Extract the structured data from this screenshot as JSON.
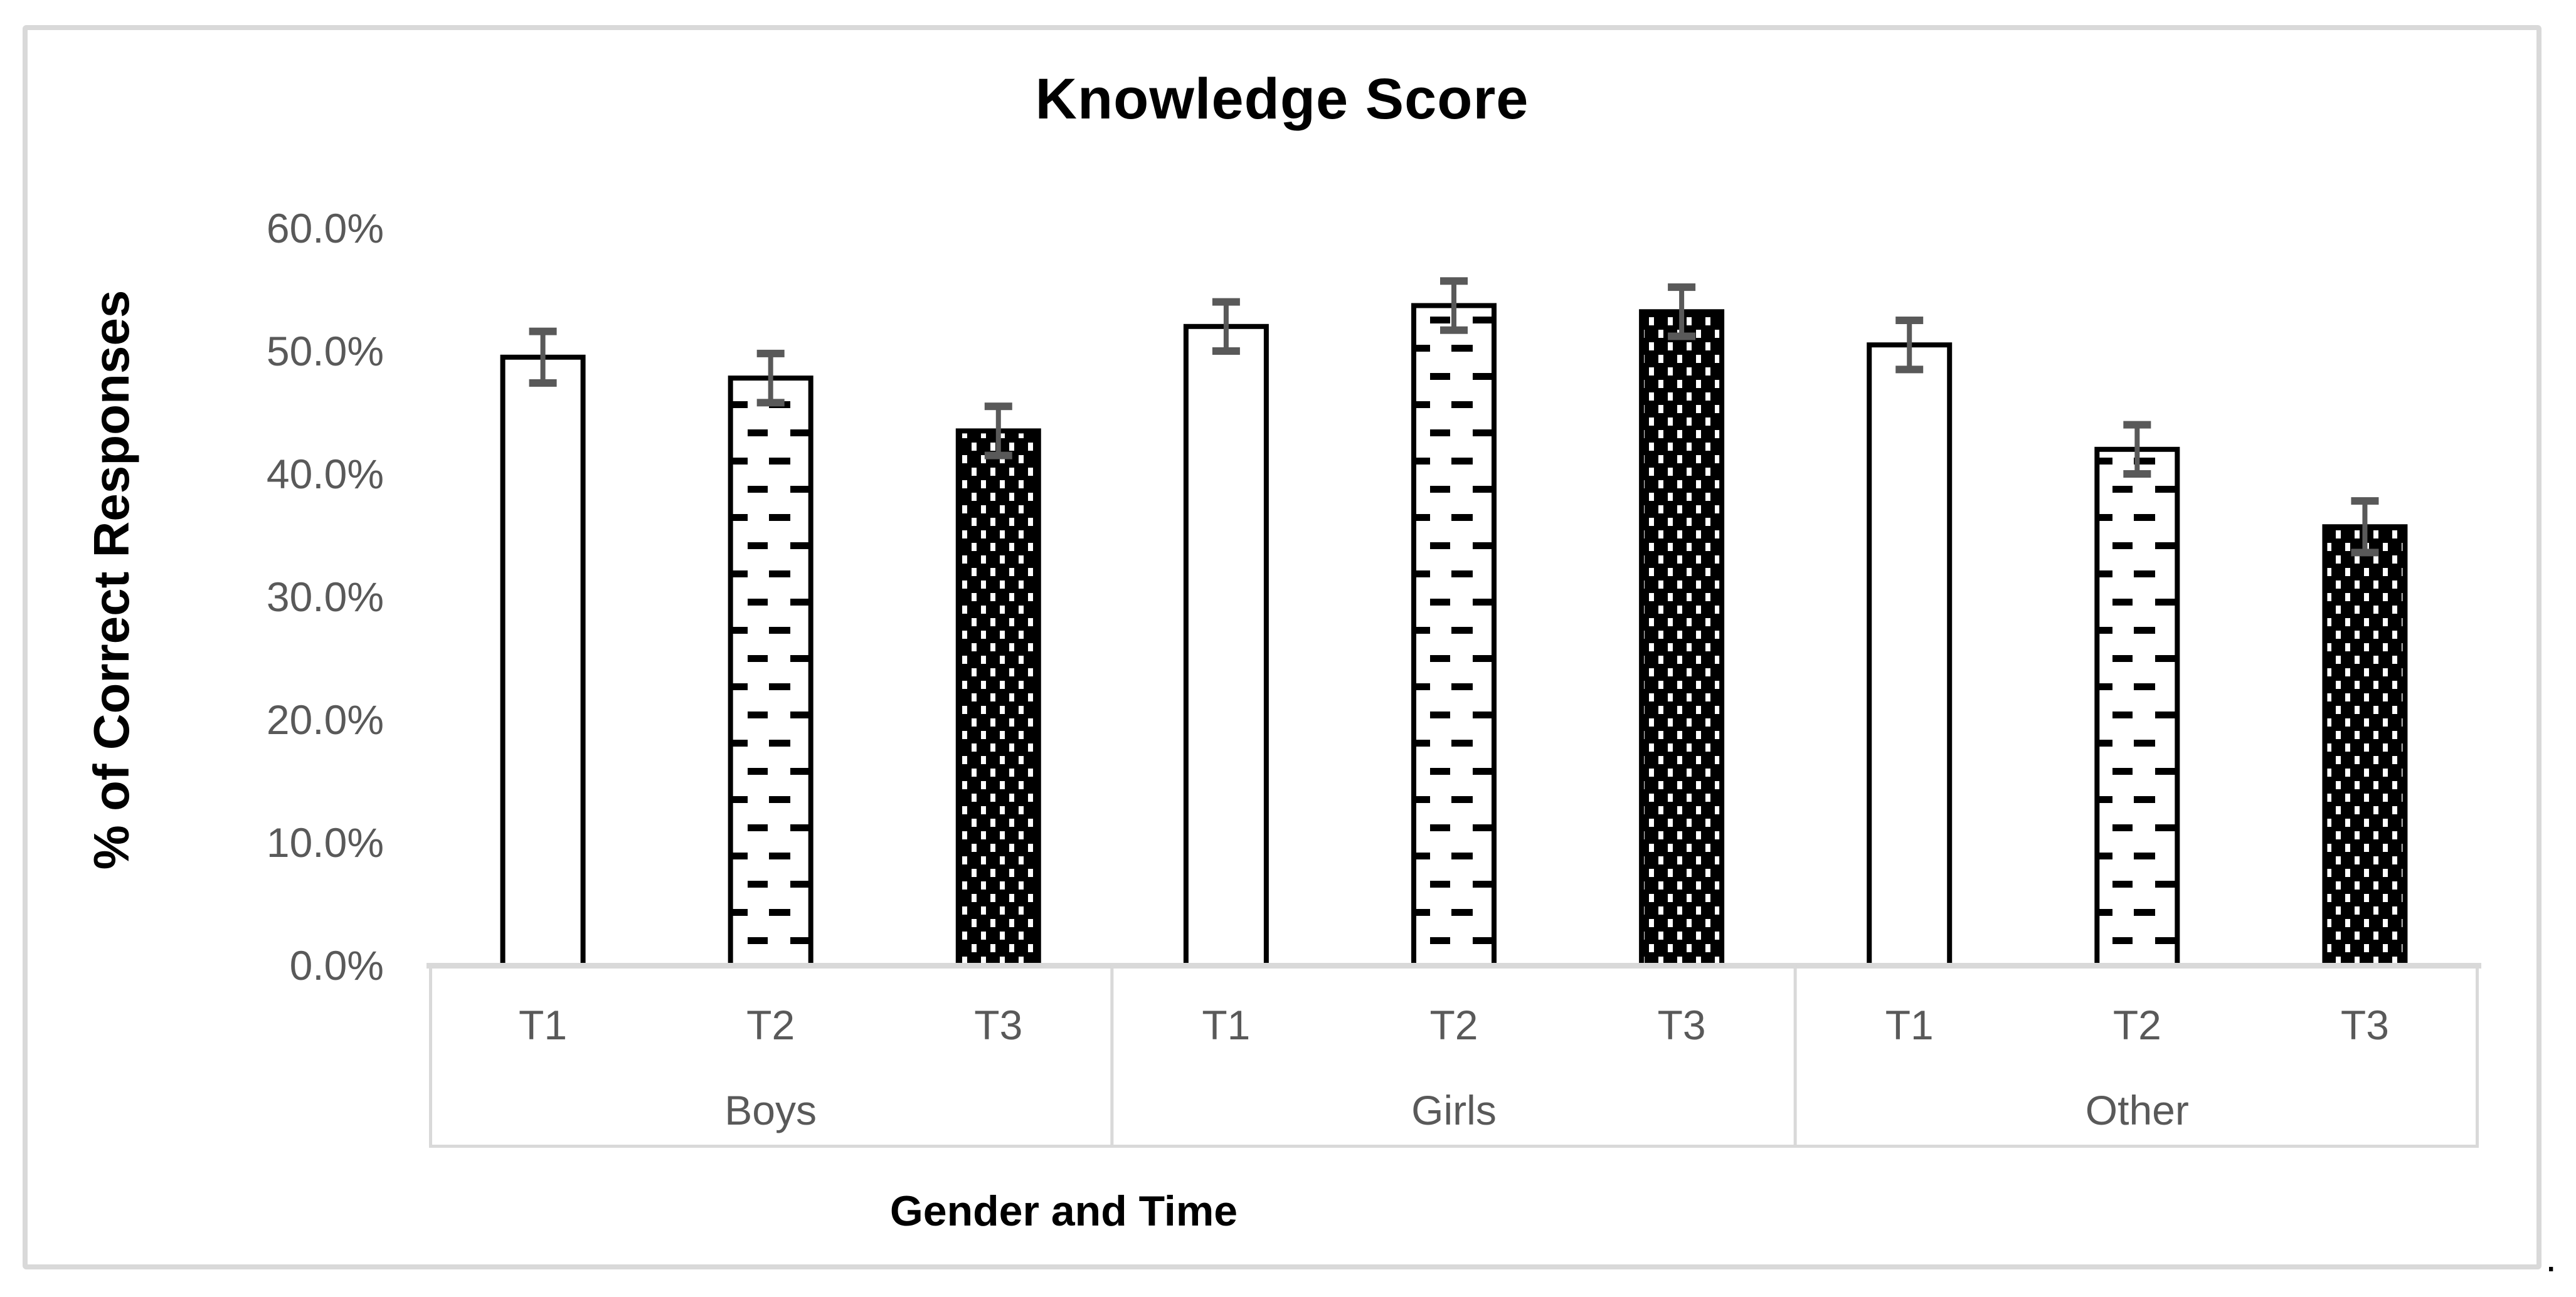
{
  "chart_data": {
    "type": "bar",
    "title": "Knowledge Score",
    "ylabel": "% of Correct Responses",
    "xlabel": "Gender and Time",
    "groups": [
      "Boys",
      "Girls",
      "Other"
    ],
    "timepoints": [
      "T1",
      "T2",
      "T3"
    ],
    "values": {
      "Boys": [
        49.5,
        47.8,
        43.5
      ],
      "Girls": [
        52.0,
        53.7,
        53.2
      ],
      "Other": [
        50.5,
        42.0,
        35.7
      ]
    },
    "error_bars": {
      "Boys": [
        2.1,
        2.0,
        2.0
      ],
      "Girls": [
        2.0,
        2.0,
        2.0
      ],
      "Other": [
        2.0,
        2.0,
        2.1
      ]
    },
    "unit": "%",
    "ylim": [
      0,
      60
    ],
    "ytick_step": 10,
    "ytick_labels": [
      "0.0%",
      "10.0%",
      "20.0%",
      "30.0%",
      "40.0%",
      "50.0%",
      "60.0%"
    ],
    "grid": false,
    "legend": false,
    "error_bars_shown": true,
    "bar_styles": {
      "T1": "white fill, black outline",
      "T2": "white fill, black dashed-row pattern, black outline",
      "T3": "black fill, white dot pattern, black outline"
    },
    "colors": {
      "text_primary": "#000000",
      "text_secondary": "#595959",
      "axis_line": "#d9d9d9",
      "frame_border": "#d9d9d9",
      "error_bar": "#595959",
      "bar_outline": "#000000",
      "bar_fill_t1": "#ffffff",
      "bar_fill_t3": "#000000",
      "background": "#ffffff"
    }
  },
  "stray_text": "."
}
